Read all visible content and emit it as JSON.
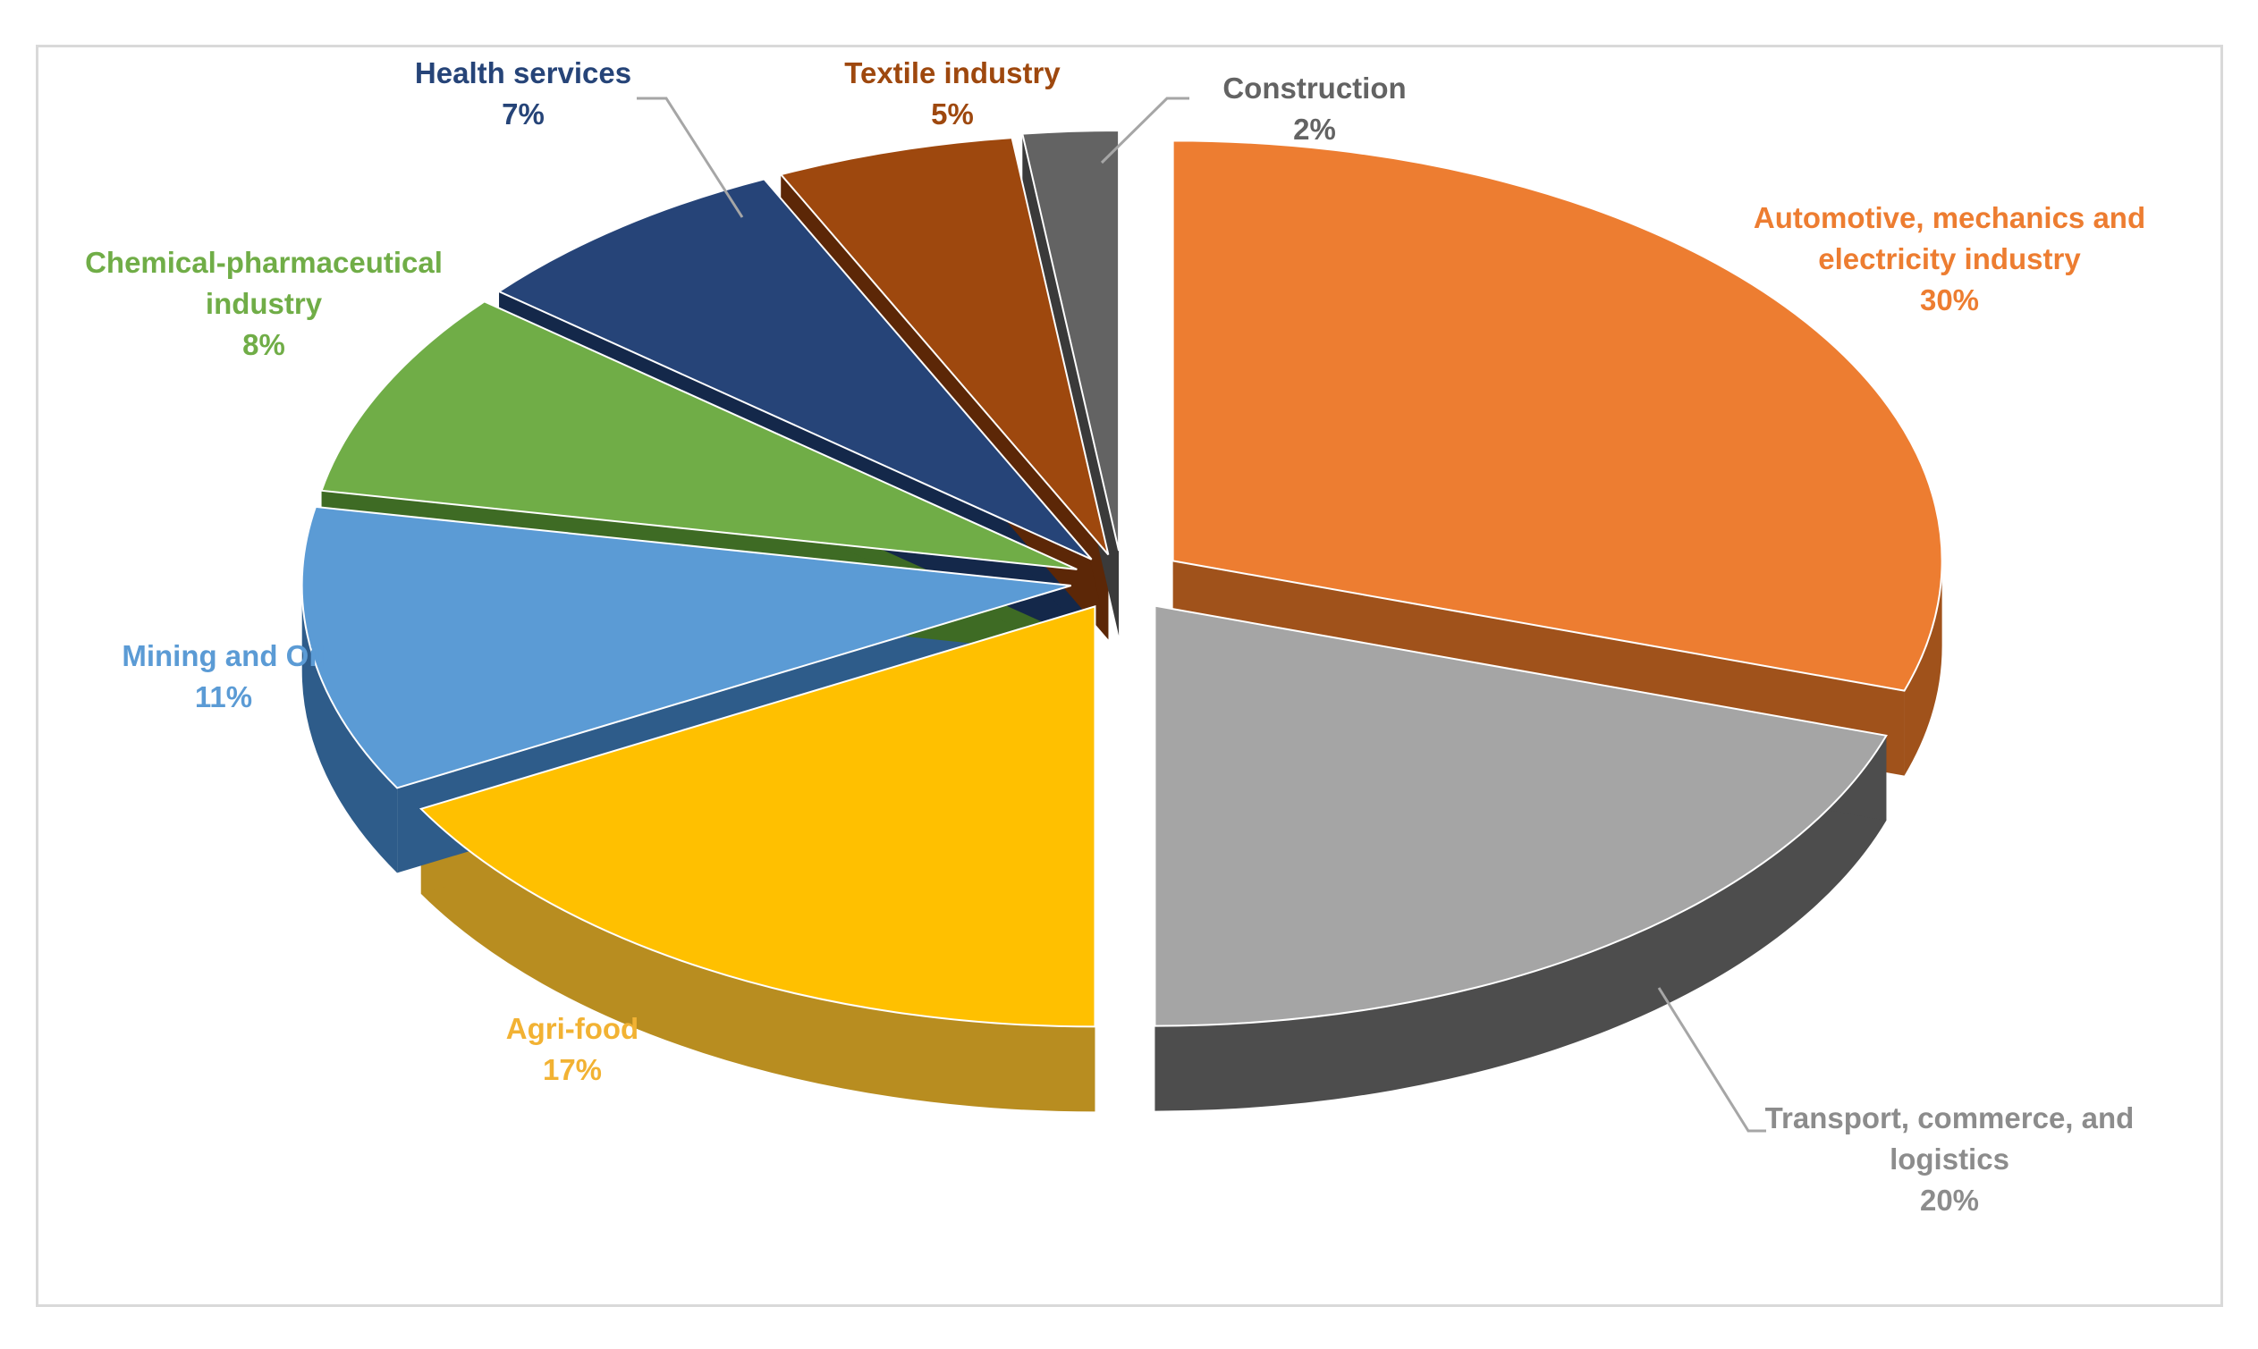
{
  "chart_data": {
    "type": "pie",
    "style": "3d-exploded",
    "start_angle_deg": -90,
    "direction": "clockwise",
    "slices": [
      {
        "label": [
          "Automotive, mechanics and",
          "electricity industry"
        ],
        "pct_label": "30%",
        "value": 30,
        "color": "#ED7D31",
        "side": "#A0521B",
        "label_pos": "top-right",
        "leader": false
      },
      {
        "label": [
          "Transport, commerce, and",
          "logistics"
        ],
        "pct_label": "20%",
        "value": 20,
        "color": "#A5A5A5",
        "side": "#4D4D4D",
        "text_color": "#8C8C8C",
        "label_pos": "bottom-right",
        "leader": true
      },
      {
        "label": [
          "Agri-food"
        ],
        "pct_label": "17%",
        "value": 17,
        "color": "#FFC000",
        "side": "#B88D20",
        "text_color": "#F2B233",
        "label_pos": "bottom-left",
        "leader": false
      },
      {
        "label": [
          "Mining and Oil"
        ],
        "pct_label": "11%",
        "value": 11,
        "color": "#5B9BD5",
        "side": "#2E5C8A",
        "label_pos": "left",
        "leader": false
      },
      {
        "label": [
          "Chemical-pharmaceutical",
          "industry"
        ],
        "pct_label": "8%",
        "value": 8,
        "color": "#70AD47",
        "side": "#3E6B24",
        "label_pos": "top-left",
        "leader": false
      },
      {
        "label": [
          "Health services"
        ],
        "pct_label": "7%",
        "value": 7,
        "color": "#264478",
        "side": "#14284A",
        "label_pos": "top",
        "leader": true
      },
      {
        "label": [
          "Textile industry"
        ],
        "pct_label": "5%",
        "value": 5,
        "color": "#9E480E",
        "side": "#5C2707",
        "label_pos": "top",
        "leader": false
      },
      {
        "label": [
          "Construction"
        ],
        "pct_label": "2%",
        "value": 2,
        "color": "#636363",
        "side": "#3A3A3A",
        "label_pos": "top",
        "leader": true
      }
    ]
  }
}
